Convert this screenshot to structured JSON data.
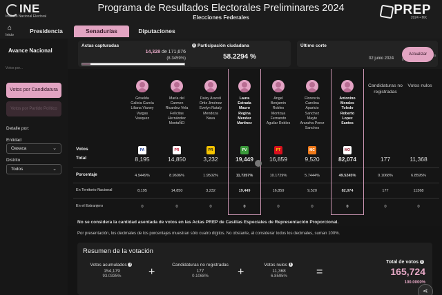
{
  "header": {
    "org_name": "INE",
    "org_subtitle": "Instituto Nacional Electoral",
    "title": "Programa de Resultados Electorales Preliminares 2024",
    "subtitle": "Elecciones Federales",
    "prep_name": "PREP",
    "prep_sub": "2024 • MX"
  },
  "nav": {
    "home_label": "Inicio",
    "tabs": [
      {
        "label": "Presidencia"
      },
      {
        "label": "Senadurías"
      },
      {
        "label": "Diputaciones"
      }
    ]
  },
  "sidebar": {
    "title": "Avance Nacional",
    "clipped_text": "Votos por...",
    "btn_candidatura": "Votos por Candidatura",
    "btn_partido": "Votos por Partido Político",
    "detail_label": "Detalle por:",
    "entidad_label": "Entidad",
    "entidad_value": "Oaxaca",
    "distrito_label": "Distrito",
    "distrito_value": "Todos"
  },
  "summary": {
    "actas_title": "Actas capturadas",
    "actas_count": "14,328",
    "actas_of": "de 171,676",
    "actas_pct": "(8.3459%)",
    "actas_progress": 0.083459,
    "participacion_title": "Participación ciudadana",
    "participacion_value": "58.2294 %",
    "corte_title": "Último corte",
    "corte_date": "02 junio 2024",
    "corte_tz": "Tiempo del Centro 22:15 h UTC-6",
    "update_label": "Actualizar"
  },
  "table": {
    "row_votos": "Votos",
    "row_total": "Total",
    "row_pct": "Porcentaje",
    "row_territorio": "En Territorio Nacional",
    "row_extranjero": "En el Extranjero",
    "col_no_reg": "Candidaturas no registradas",
    "col_nulos": "Votos nulos",
    "candidates": [
      {
        "name": [
          "Griselda",
          "Galicia García",
          "Liliana Vianey",
          "Vargas",
          "Vasquez"
        ],
        "party": "PAN",
        "logo_bg": "#ffffff",
        "logo_fg": "#1a3a9a",
        "total": "8,195",
        "pct": "4.9449%",
        "territorio": "8,195",
        "extranjero": "0",
        "win": false
      },
      {
        "name": [
          "María del",
          "Carmen",
          "Ricardez Vela",
          "Felícitas",
          "Hernández",
          "MontaÑO"
        ],
        "party": "PRI",
        "logo_bg": "#ffffff",
        "logo_fg": "#c8102e",
        "total": "14,850",
        "pct": "8.9606%",
        "territorio": "14,850",
        "extranjero": "0",
        "win": false
      },
      {
        "name": [
          "Daisy Araceli",
          "Ortiz Jiménez",
          "Evelyn Nataly",
          "Mendoza",
          "Nava"
        ],
        "party": "PRD",
        "logo_bg": "#f5c400",
        "logo_fg": "#222222",
        "total": "3,232",
        "pct": "1.9502%",
        "territorio": "3,232",
        "extranjero": "0",
        "win": false
      },
      {
        "name": [
          "Laura",
          "Estrada",
          "Mauro",
          "Regina",
          "Mendez",
          "Martinez"
        ],
        "party": "PVEM",
        "logo_bg": "#3a9a3a",
        "logo_fg": "#ffffff",
        "total": "19,449",
        "pct": "11.7357%",
        "territorio": "19,449",
        "extranjero": "0",
        "win": true
      },
      {
        "name": [
          "Angel",
          "Benjamin",
          "Robles",
          "Montoya",
          "Fernando",
          "Aguilar Robles"
        ],
        "party": "PT",
        "logo_bg": "#d8101e",
        "logo_fg": "#f5e000",
        "total": "16,859",
        "pct": "10.1729%",
        "territorio": "16,859",
        "extranjero": "0",
        "win": false
      },
      {
        "name": [
          "Florencia",
          "Carolina",
          "Aparicio",
          "Sanchez",
          "Mayte",
          "Aranzha Perez",
          "Sanchez"
        ],
        "party": "MC",
        "logo_bg": "#f07a1a",
        "logo_fg": "#ffffff",
        "total": "9,520",
        "pct": "5.7444%",
        "territorio": "9,520",
        "extranjero": "0",
        "win": false
      },
      {
        "name": [
          "Antonino",
          "Morales",
          "Toledo",
          "Roberto",
          "Lopez",
          "Santos"
        ],
        "party": "MORENA",
        "logo_bg": "#ffffff",
        "logo_fg": "#9b1b30",
        "total": "82,074",
        "pct": "49.5245%",
        "territorio": "82,074",
        "extranjero": "0",
        "win": true
      }
    ],
    "no_reg": {
      "total": "177",
      "pct": "0.1068%",
      "territorio": "177",
      "extranjero": "0"
    },
    "nulos": {
      "total": "11,368",
      "pct": "6.8595%",
      "territorio": "11368",
      "extranjero": "0"
    }
  },
  "notes": {
    "note1": "No se considera la cantidad asentada de votos en las Actas PREP de Casillas Especiales de Representación Proporcional.",
    "note2": "Por presentación, los decimales de los porcentajes muestran sólo cuatro dígitos. No obstante, al considerar todos los decimales, suman 100%."
  },
  "resumen": {
    "title": "Resumen de la votación",
    "acumulados_label": "Votos acumulados",
    "acumulados_num": "154,179",
    "acumulados_pct": "93.0335%",
    "no_reg_label": "Candidaturas no registradas",
    "no_reg_num": "177",
    "no_reg_pct": "0.1068%",
    "nulos_label": "Votos nulos",
    "nulos_num": "11,368",
    "nulos_pct": "6.8595%",
    "total_label": "Total de votos",
    "total_value": "165,724",
    "total_pct": "100.0000%",
    "plus": "+",
    "equals": "="
  }
}
